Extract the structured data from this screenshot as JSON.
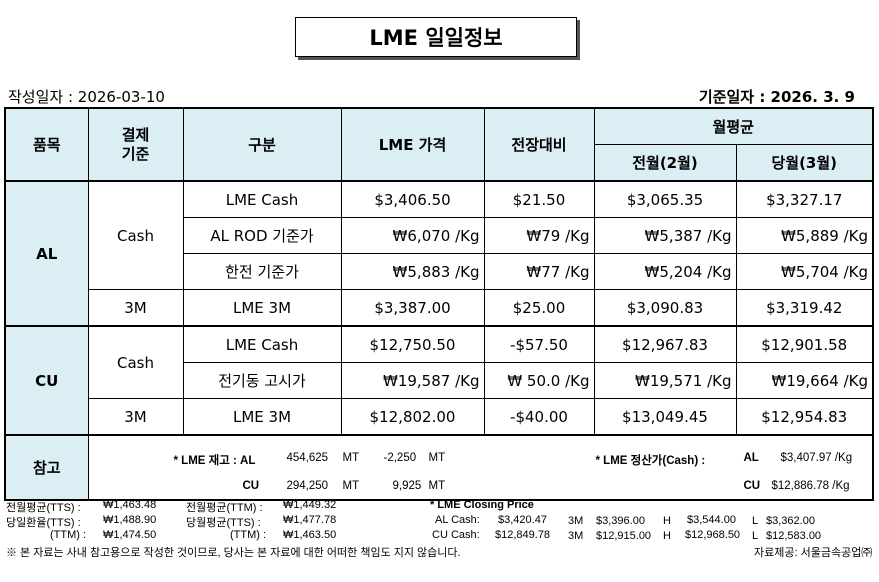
{
  "title": "LME 일일정보",
  "written_date": "작성일자 :  2026-03-10",
  "base_date": "기준일자 : 2026.   3.    9",
  "headers": {
    "item": "품목",
    "settle": "결제\n기준",
    "category": "구분",
    "lme_price": "LME 가격",
    "change": "전장대비",
    "monthly_avg": "월평균",
    "prev_month": "전월(2월)",
    "cur_month": "당월(3월)"
  },
  "al": {
    "label": "AL",
    "cash": "Cash",
    "m3": "3M",
    "rows": [
      {
        "cat": "LME Cash",
        "price": "$3,406.50",
        "chg": "$21.50",
        "prev": "$3,065.35",
        "cur": "$3,327.17"
      },
      {
        "cat": "AL ROD 기준가",
        "price": "₩6,070 /Kg",
        "chg": "₩79 /Kg",
        "prev": "₩5,387 /Kg",
        "cur": "₩5,889 /Kg"
      },
      {
        "cat": "한전 기준가",
        "price": "₩5,883 /Kg",
        "chg": "₩77 /Kg",
        "prev": "₩5,204 /Kg",
        "cur": "₩5,704 /Kg"
      },
      {
        "cat": "LME  3M",
        "price": "$3,387.00",
        "chg": "$25.00",
        "prev": "$3,090.83",
        "cur": "$3,319.42"
      }
    ]
  },
  "cu": {
    "label": "CU",
    "cash": "Cash",
    "m3": "3M",
    "rows": [
      {
        "cat": "LME Cash",
        "price": "$12,750.50",
        "chg": "-$57.50",
        "prev": "$12,967.83",
        "cur": "$12,901.58"
      },
      {
        "cat": "전기동 고시가",
        "price": "₩19,587 /Kg",
        "chg": "₩ 50.0  /Kg",
        "prev": "₩19,571 /Kg",
        "cur": "₩19,664 /Kg"
      },
      {
        "cat": "LME 3M",
        "price": "$12,802.00",
        "chg": "-$40.00",
        "prev": "$13,049.45",
        "cur": "$12,954.83"
      }
    ]
  },
  "reference": {
    "label": "참고",
    "stock_label": "* LME 재고 : AL",
    "stock_al": "454,625",
    "stock_al_chg": "-2,250",
    "stock_cu_label": "CU",
    "stock_cu": "294,250",
    "stock_cu_chg": "9,925",
    "unit": "MT",
    "settle_label": "* LME 정산가(Cash) :",
    "settle_al_label": "AL",
    "settle_al": "$3,407.97 /Kg",
    "settle_cu_label": "CU",
    "settle_cu": "$12,886.78 /Kg"
  },
  "footer": {
    "l1a": "전월평균(TTS) :",
    "l1b": "₩1,463.48",
    "l1c": "전월평균(TTM) :",
    "l1d": "₩1,449.32",
    "l2a": "당일환율(TTS) :",
    "l2b": "₩1,488.90",
    "l2c": "당월평균(TTS) :",
    "l2d": "₩1,477.78",
    "l3a": "(TTM) :",
    "l3b": "₩1,474.50",
    "l3c": "(TTM) :",
    "l3d": "₩1,463.50",
    "closing_title": "* LME Closing Price",
    "al": [
      "AL  Cash:",
      "$3,420.47",
      "3M",
      "$3,396.00",
      "H",
      "$3,544.00",
      "L",
      "$3,362.00"
    ],
    "cu": [
      "CU  Cash:",
      "$12,849.78",
      "3M",
      "$12,915.00",
      "H",
      "$12,968.50",
      "L",
      "$12,583.00"
    ],
    "disclaimer": "※ 본 자료는 사내 참고용으로 작성한 것이므로, 당사는 본 자료에 대한 어떠한 책임도 지지 않습니다.",
    "source": "자료제공: 서울금속공업㈜"
  }
}
